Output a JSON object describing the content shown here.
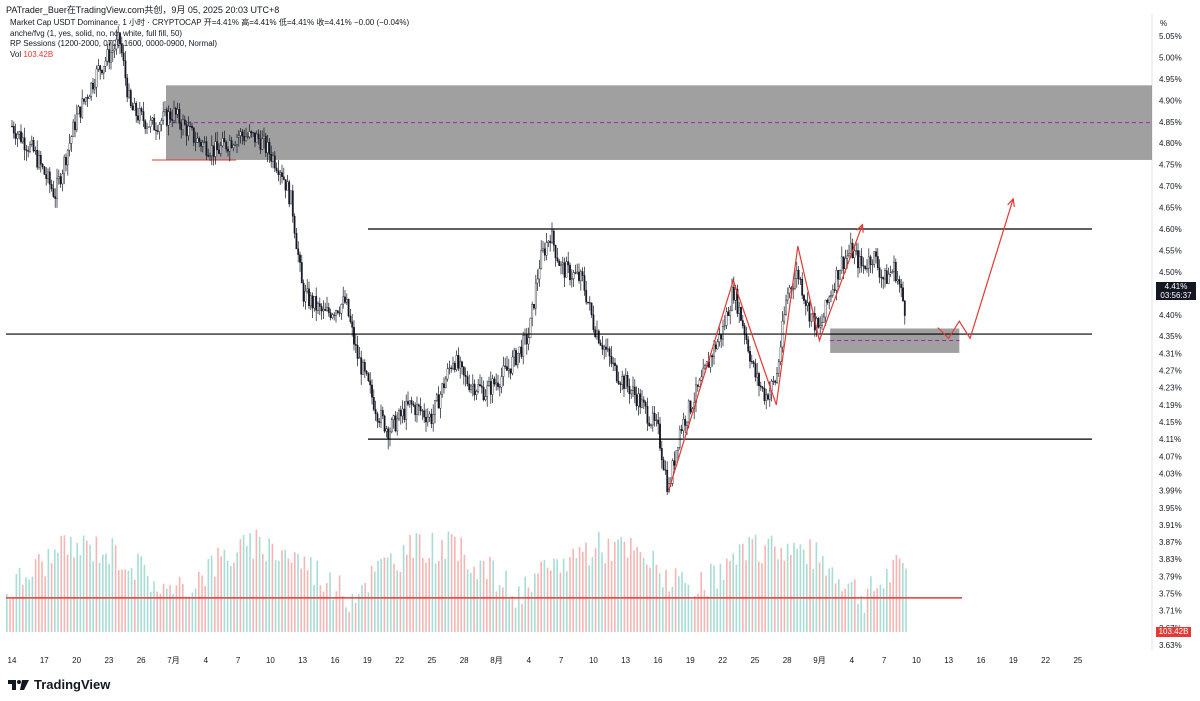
{
  "header": {
    "caption": "PATrader_Buer在TradingView.com共创，9月 05, 2025 20:03 UTC+8",
    "symbol_line": "Market Cap USDT Dominance, 1 小时 · CRYPTOCAP  开=4.41%  高=4.41%  低=4.41%  收=4.41%  −0.00 (−0.04%)",
    "indicator1": "anche/fvg (1, yes, solid, no, no, white, full fill, 50)",
    "indicator2": "RP Sessions (1200-2000, 0700-1600, 0000-0900, Normal)",
    "vol_label": "Vol",
    "vol_value": "103.42B"
  },
  "axis": {
    "unit_label": "%",
    "price_ticks": [
      "5.05%",
      "5.00%",
      "4.95%",
      "4.90%",
      "4.85%",
      "4.80%",
      "4.75%",
      "4.70%",
      "4.65%",
      "4.60%",
      "4.55%",
      "4.50%",
      "4.45%",
      "4.40%",
      "4.35%",
      "4.31%",
      "4.27%",
      "4.23%",
      "4.19%",
      "4.15%",
      "4.11%",
      "4.07%",
      "4.03%",
      "3.99%",
      "3.95%",
      "3.91%",
      "3.87%",
      "3.83%",
      "3.79%",
      "3.75%",
      "3.71%",
      "3.67%",
      "3.63%"
    ],
    "date_ticks": [
      "14",
      "17",
      "20",
      "23",
      "26",
      "7月",
      "4",
      "7",
      "10",
      "13",
      "16",
      "19",
      "22",
      "25",
      "28",
      "8月",
      "4",
      "7",
      "10",
      "13",
      "16",
      "19",
      "22",
      "25",
      "28",
      "9月",
      "4",
      "7",
      "10",
      "13",
      "16",
      "19",
      "22",
      "25"
    ]
  },
  "current_price": {
    "value": "4.41%",
    "countdown": "03:56:37"
  },
  "current_volume": "103.42B",
  "brand": "TradingView",
  "colors": {
    "up": "#26a69a",
    "down": "#ef5350",
    "annotation": "#e53935",
    "zone": "#808080"
  },
  "chart_data": {
    "type": "candlestick",
    "title": "Market Cap USDT Dominance",
    "ylabel": "%",
    "ylim": [
      3.62,
      5.07
    ],
    "x_ticks": [
      "14",
      "17",
      "20",
      "23",
      "26",
      "7月",
      "4",
      "7",
      "10",
      "13",
      "16",
      "19",
      "22",
      "25",
      "28",
      "8月",
      "4",
      "7",
      "10",
      "13",
      "16",
      "19",
      "22",
      "25",
      "28",
      "9月",
      "4",
      "7",
      "10",
      "13",
      "16",
      "19",
      "22",
      "25"
    ],
    "price_path": [
      {
        "t": "Jun 14",
        "v": 4.84
      },
      {
        "t": "Jun 16",
        "v": 4.78
      },
      {
        "t": "Jun 18",
        "v": 4.68
      },
      {
        "t": "Jun 20",
        "v": 4.86
      },
      {
        "t": "Jun 22",
        "v": 4.97
      },
      {
        "t": "Jun 24",
        "v": 5.04
      },
      {
        "t": "Jun 25",
        "v": 4.88
      },
      {
        "t": "Jun 27",
        "v": 4.84
      },
      {
        "t": "Jun 29",
        "v": 4.87
      },
      {
        "t": "Jul 1",
        "v": 4.81
      },
      {
        "t": "Jul 3",
        "v": 4.78
      },
      {
        "t": "Jul 5",
        "v": 4.82
      },
      {
        "t": "Jul 7",
        "v": 4.81
      },
      {
        "t": "Jul 9",
        "v": 4.74
      },
      {
        "t": "Jul 10",
        "v": 4.66
      },
      {
        "t": "Jul 11",
        "v": 4.45
      },
      {
        "t": "Jul 13",
        "v": 4.4
      },
      {
        "t": "Jul 15",
        "v": 4.43
      },
      {
        "t": "Jul 16",
        "v": 4.31
      },
      {
        "t": "Jul 18",
        "v": 4.17
      },
      {
        "t": "Jul 19",
        "v": 4.13
      },
      {
        "t": "Jul 21",
        "v": 4.19
      },
      {
        "t": "Jul 23",
        "v": 4.16
      },
      {
        "t": "Jul 25",
        "v": 4.3
      },
      {
        "t": "Jul 26",
        "v": 4.25
      },
      {
        "t": "Jul 28",
        "v": 4.22
      },
      {
        "t": "Jul 30",
        "v": 4.27
      },
      {
        "t": "Aug 1",
        "v": 4.35
      },
      {
        "t": "Aug 2",
        "v": 4.52
      },
      {
        "t": "Aug 3",
        "v": 4.59
      },
      {
        "t": "Aug 4",
        "v": 4.51
      },
      {
        "t": "Aug 6",
        "v": 4.48
      },
      {
        "t": "Aug 7",
        "v": 4.38
      },
      {
        "t": "Aug 9",
        "v": 4.27
      },
      {
        "t": "Aug 11",
        "v": 4.21
      },
      {
        "t": "Aug 13",
        "v": 4.13
      },
      {
        "t": "Aug 14",
        "v": 3.99
      },
      {
        "t": "Aug 15",
        "v": 4.13
      },
      {
        "t": "Aug 17",
        "v": 4.24
      },
      {
        "t": "Aug 18",
        "v": 4.31
      },
      {
        "t": "Aug 19",
        "v": 4.36
      },
      {
        "t": "Aug 20",
        "v": 4.46
      },
      {
        "t": "Aug 21",
        "v": 4.37
      },
      {
        "t": "Aug 22",
        "v": 4.26
      },
      {
        "t": "Aug 23",
        "v": 4.21
      },
      {
        "t": "Aug 24",
        "v": 4.25
      },
      {
        "t": "Aug 25",
        "v": 4.45
      },
      {
        "t": "Aug 26",
        "v": 4.5
      },
      {
        "t": "Aug 27",
        "v": 4.41
      },
      {
        "t": "Aug 28",
        "v": 4.36
      },
      {
        "t": "Aug 29",
        "v": 4.45
      },
      {
        "t": "Aug 30",
        "v": 4.52
      },
      {
        "t": "Aug 31",
        "v": 4.55
      },
      {
        "t": "Sep 1",
        "v": 4.51
      },
      {
        "t": "Sep 2",
        "v": 4.54
      },
      {
        "t": "Sep 3",
        "v": 4.48
      },
      {
        "t": "Sep 4",
        "v": 4.51
      },
      {
        "t": "Sep 5",
        "v": 4.41
      }
    ],
    "horizontal_levels": [
      4.6,
      4.355,
      4.11
    ],
    "zones": [
      {
        "from": "Jun 29",
        "to": "end",
        "low": 4.761,
        "high": 4.935,
        "mid": 4.848
      },
      {
        "from": "Aug 29",
        "to": "Sep 10",
        "low": 4.311,
        "high": 4.368,
        "mid": 4.34
      }
    ],
    "volume_reference_line": 3.74,
    "projection_path": [
      {
        "t": "Sep 8",
        "v": 4.37
      },
      {
        "t": "Sep 9",
        "v": 4.345
      },
      {
        "t": "Sep 10",
        "v": 4.385
      },
      {
        "t": "Sep 11",
        "v": 4.345
      },
      {
        "t": "Sep 15",
        "v": 4.67
      }
    ],
    "swing_annotation_path": [
      {
        "t": "Aug 14",
        "v": 3.99
      },
      {
        "t": "Aug 20",
        "v": 4.48
      },
      {
        "t": "Aug 24",
        "v": 4.19
      },
      {
        "t": "Aug 26",
        "v": 4.56
      },
      {
        "t": "Aug 28",
        "v": 4.34
      },
      {
        "t": "Sep 1",
        "v": 4.61
      }
    ]
  }
}
